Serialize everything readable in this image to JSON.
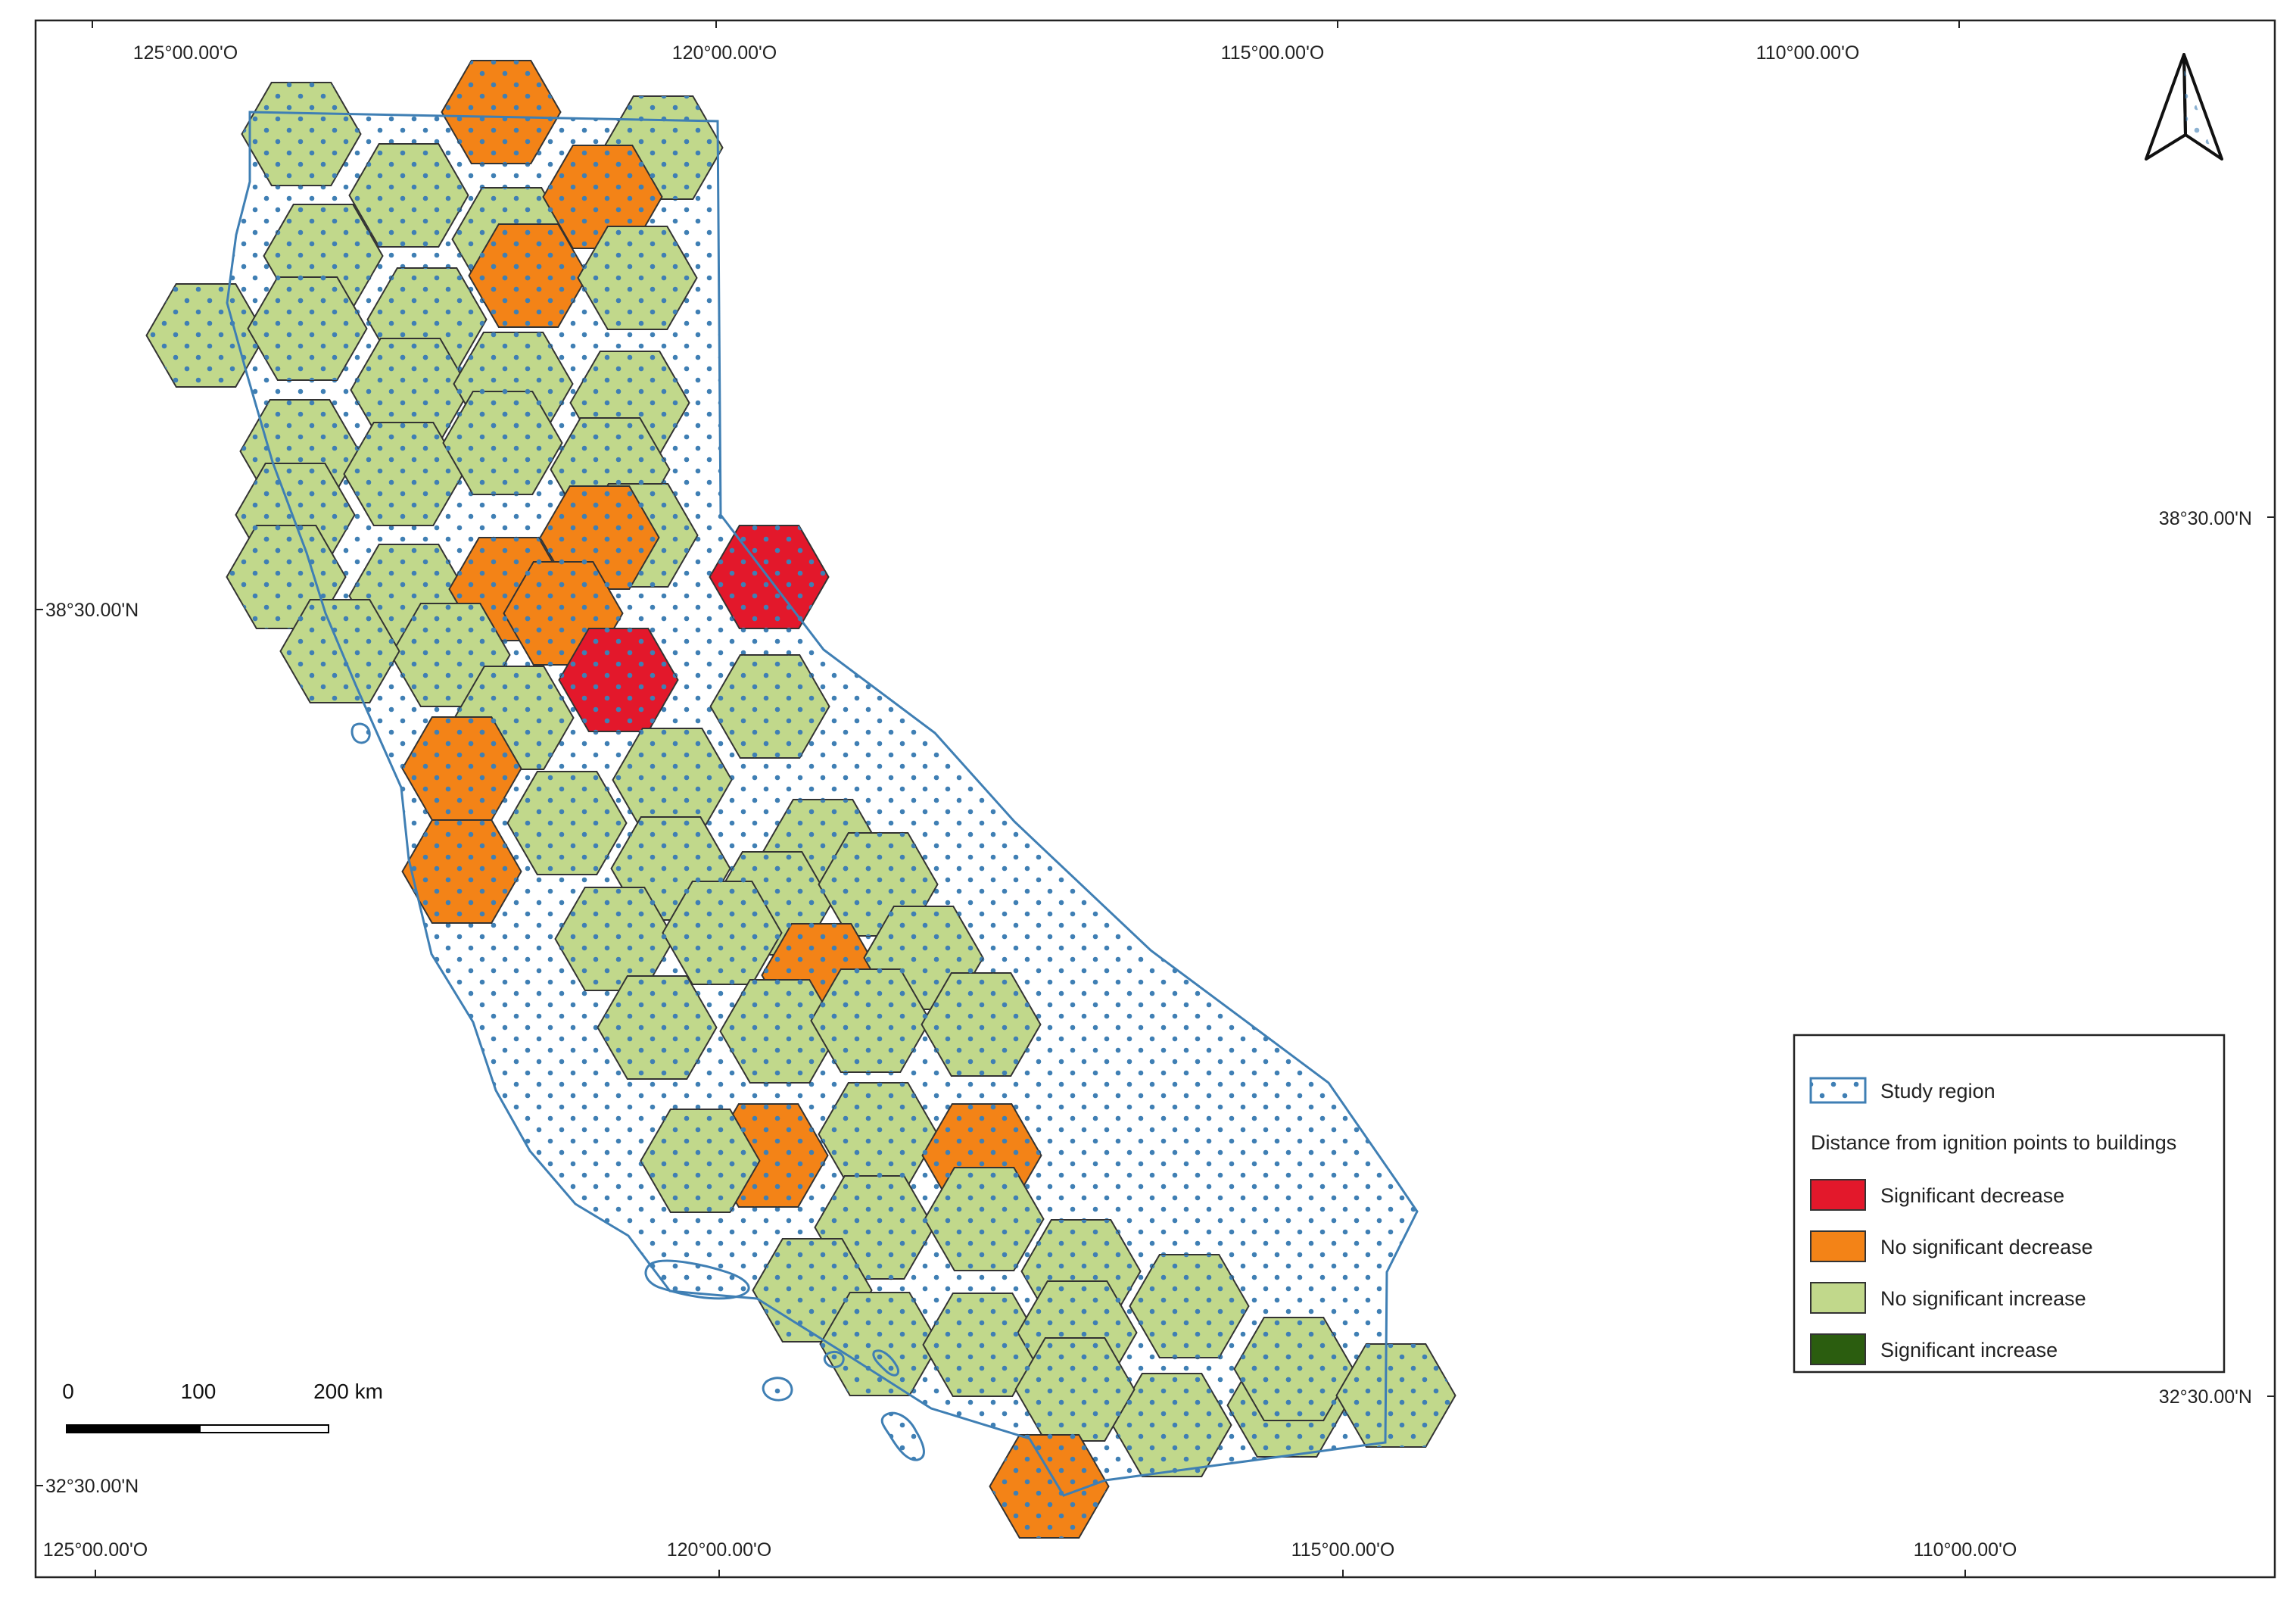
{
  "map": {
    "graticule": {
      "top_labels": [
        "125°00.00'O",
        "120°00.00'O",
        "115°00.00'O",
        "110°00.00'O"
      ],
      "bottom_labels": [
        "125°00.00'O",
        "120°00.00'O",
        "115°00.00'O",
        "110°00.00'O"
      ],
      "left_labels": [
        "38°30.00'N",
        "32°30.00'N"
      ],
      "right_labels": [
        "38°30.00'N",
        "32°30.00'N"
      ]
    },
    "north_arrow": "north-arrow-icon",
    "scale_bar": {
      "labels": [
        "0",
        "100",
        "200 km"
      ]
    },
    "legend": {
      "study_region_label": "Study region",
      "section_title": "Distance from ignition points to buildings",
      "items": [
        {
          "label": "Significant decrease",
          "color": "#e3182b"
        },
        {
          "label": "No significant decrease",
          "color": "#f38317"
        },
        {
          "label": "No significant increase",
          "color": "#c1d88b"
        },
        {
          "label": "Significant increase",
          "color": "#2b5d0f"
        }
      ]
    },
    "colors": {
      "study_region_line": "#3f7fb4",
      "study_region_dots": "#3f7fb4",
      "hex_stroke": "#333333"
    },
    "hexagons": [
      {
        "status": "No significant increase"
      },
      {
        "status": "No significant decrease"
      },
      {
        "status": "No significant increase"
      },
      {
        "status": "No significant increase"
      },
      {
        "status": "No significant increase"
      },
      {
        "status": "No significant increase"
      },
      {
        "status": "No significant decrease"
      },
      {
        "status": "No significant increase"
      },
      {
        "status": "No significant increase"
      },
      {
        "status": "No significant increase"
      },
      {
        "status": "No significant decrease"
      },
      {
        "status": "No significant increase"
      },
      {
        "status": "No significant increase"
      },
      {
        "status": "No significant increase"
      },
      {
        "status": "No significant increase"
      },
      {
        "status": "No significant increase"
      },
      {
        "status": "No significant increase"
      },
      {
        "status": "No significant increase"
      },
      {
        "status": "No significant increase"
      },
      {
        "status": "No significant increase"
      },
      {
        "status": "No significant increase"
      },
      {
        "status": "No significant increase"
      },
      {
        "status": "No significant increase"
      },
      {
        "status": "No significant decrease"
      },
      {
        "status": "No significant decrease"
      },
      {
        "status": "Significant decrease"
      },
      {
        "status": "No significant decrease"
      },
      {
        "status": "No significant increase"
      },
      {
        "status": "No significant increase"
      },
      {
        "status": "Significant decrease"
      },
      {
        "status": "No significant increase"
      },
      {
        "status": "No significant increase"
      },
      {
        "status": "No significant increase"
      },
      {
        "status": "No significant decrease"
      },
      {
        "status": "No significant increase"
      },
      {
        "status": "No significant increase"
      },
      {
        "status": "No significant increase"
      },
      {
        "status": "No significant decrease"
      },
      {
        "status": "No significant increase"
      },
      {
        "status": "No significant increase"
      },
      {
        "status": "No significant increase"
      },
      {
        "status": "No significant increase"
      },
      {
        "status": "No significant decrease"
      },
      {
        "status": "No significant increase"
      },
      {
        "status": "No significant increase"
      },
      {
        "status": "No significant increase"
      },
      {
        "status": "No significant increase"
      },
      {
        "status": "No significant increase"
      },
      {
        "status": "No significant decrease"
      },
      {
        "status": "No significant increase"
      },
      {
        "status": "No significant decrease"
      },
      {
        "status": "No significant increase"
      },
      {
        "status": "No significant increase"
      },
      {
        "status": "No significant increase"
      },
      {
        "status": "No significant increase"
      },
      {
        "status": "No significant increase"
      },
      {
        "status": "No significant increase"
      },
      {
        "status": "No significant increase"
      },
      {
        "status": "No significant increase"
      },
      {
        "status": "No significant increase"
      },
      {
        "status": "No significant increase"
      },
      {
        "status": "No significant increase"
      },
      {
        "status": "No significant increase"
      },
      {
        "status": "No significant increase"
      },
      {
        "status": "No significant increase"
      },
      {
        "status": "No significant decrease"
      }
    ]
  }
}
